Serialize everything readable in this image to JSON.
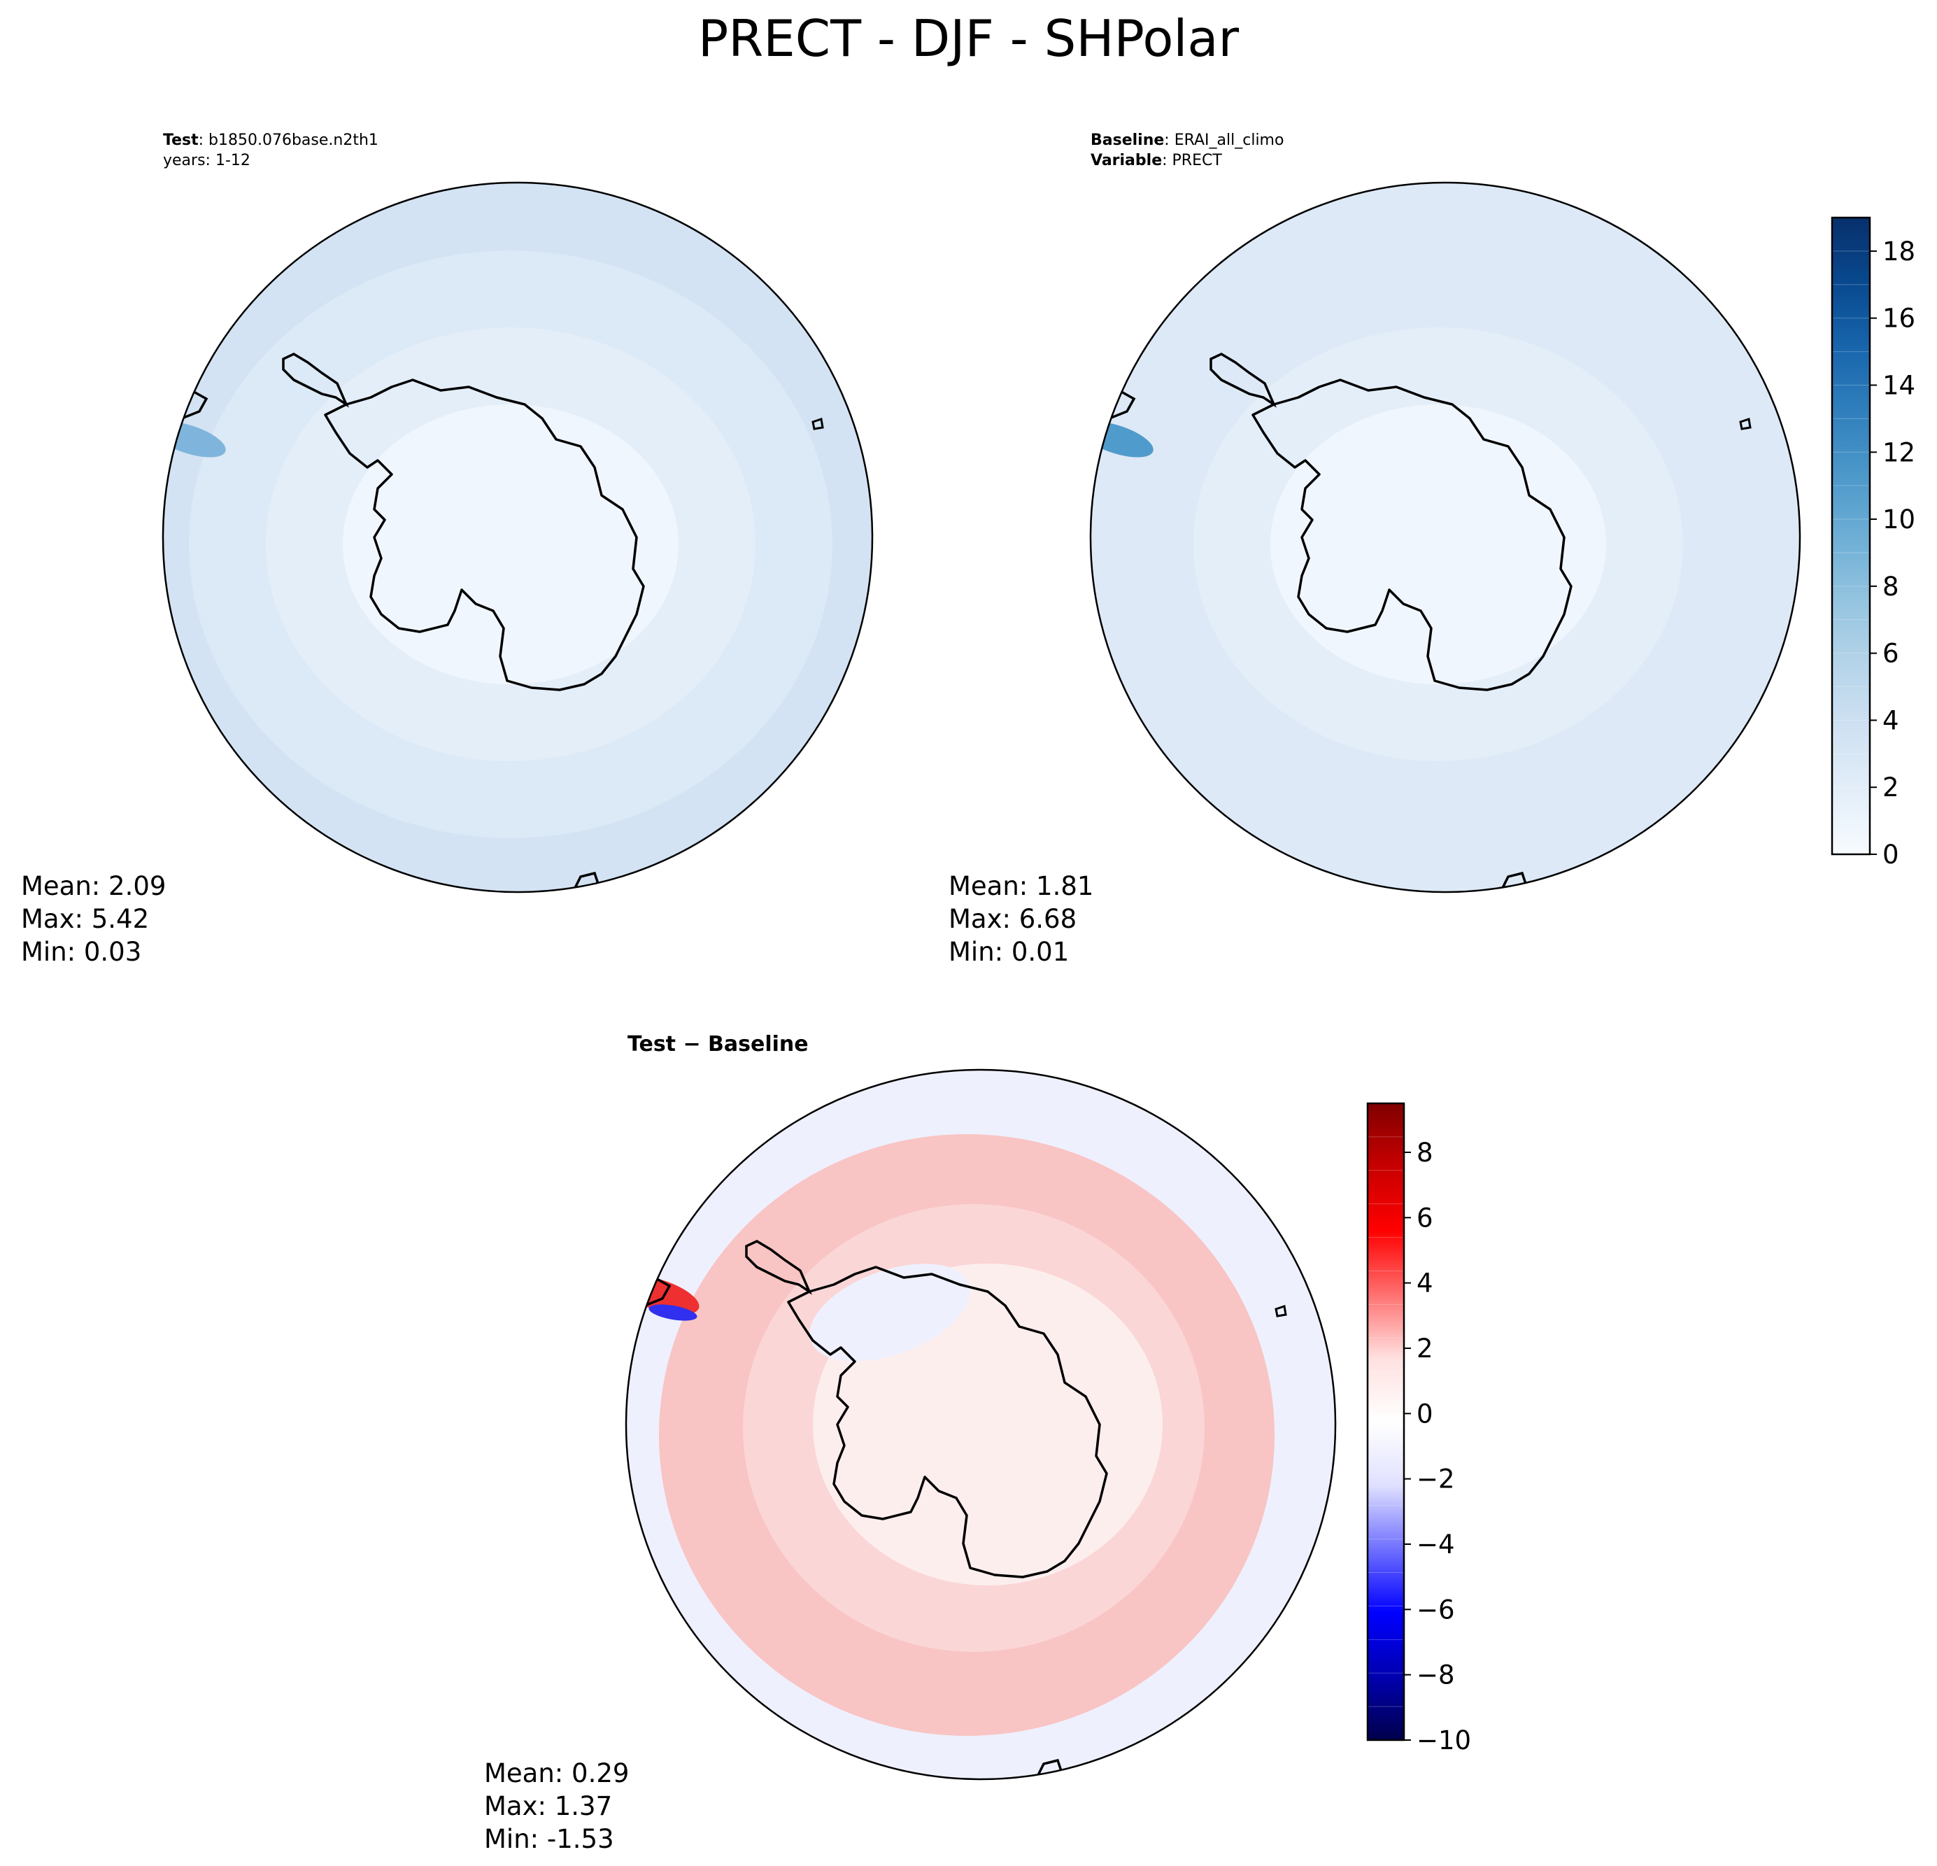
{
  "figure_title": "PRECT - DJF - SHPolar",
  "colors": {
    "circle_edge": "#000000",
    "coast": "#000000",
    "field_test": [
      "#f0f6fd",
      "#e4eef9",
      "#dce9f6",
      "#d3e3f3"
    ],
    "field_base": [
      "#f0f6fd",
      "#e4eef9",
      "#dde9f6"
    ],
    "field_diff": [
      "#fdeeee",
      "#fbd6d6",
      "#f9c4c4",
      "#eef0fd"
    ],
    "blues_ramp": [
      "#f7fbff",
      "#e3eef9",
      "#cfe1f2",
      "#b5d4e9",
      "#93c3df",
      "#6daed5",
      "#4b97c9",
      "#2f7ebc",
      "#1764ab",
      "#08488e",
      "#08306b"
    ],
    "seismic_ramp": [
      "#00004c",
      "#0000b0",
      "#0000ff",
      "#7070ff",
      "#e0e0ff",
      "#ffffff",
      "#ffe0e0",
      "#ff7070",
      "#ff0000",
      "#c80000",
      "#800000"
    ]
  },
  "panels": {
    "test": {
      "label_bold": "Test",
      "label_rest": ": b1850.076base.n2th1",
      "line2": "years: 1-12",
      "stats": [
        "Mean:  2.09",
        "Max:  5.42",
        "Min:  0.03"
      ]
    },
    "baseline": {
      "label_bold": "Baseline",
      "label_rest": ": ERAI_all_climo",
      "line2_bold": "Variable",
      "line2_rest": ": PRECT",
      "stats": [
        "Mean:  1.81",
        "Max:  6.68",
        "Min:  0.01"
      ]
    },
    "diff": {
      "title": "Test − Baseline",
      "stats": [
        "Mean:  0.29",
        "Max:  1.37",
        "Min: -1.53"
      ]
    }
  },
  "chart_data": [
    {
      "type": "heatmap",
      "panel": "Test",
      "case": "b1850.076base.n2th1",
      "years": "1-12",
      "mean": 2.09,
      "max": 5.42,
      "min": 0.03,
      "colormap": "Blues",
      "projection": "South Polar Stereographic"
    },
    {
      "type": "heatmap",
      "panel": "Baseline",
      "case": "ERAI_all_climo",
      "variable": "PRECT",
      "mean": 1.81,
      "max": 6.68,
      "min": 0.01,
      "colormap": "Blues",
      "colorbar": {
        "range": [
          0,
          19
        ],
        "ticks": [
          0,
          2,
          4,
          6,
          8,
          10,
          12,
          14,
          16,
          18
        ],
        "tick_labels": [
          "0",
          "2",
          "4",
          "6",
          "8",
          "10",
          "12",
          "14",
          "16",
          "18"
        ]
      }
    },
    {
      "type": "heatmap",
      "panel": "Test − Baseline",
      "mean": 0.29,
      "max": 1.37,
      "min": -1.53,
      "colormap": "seismic",
      "colorbar": {
        "range": [
          -10,
          9.5
        ],
        "ticks": [
          -10,
          -8,
          -6,
          -4,
          -2,
          0,
          2,
          4,
          6,
          8
        ],
        "tick_labels": [
          "−10",
          "−8",
          "−6",
          "−4",
          "−2",
          "0",
          "2",
          "4",
          "6",
          "8"
        ]
      }
    }
  ]
}
